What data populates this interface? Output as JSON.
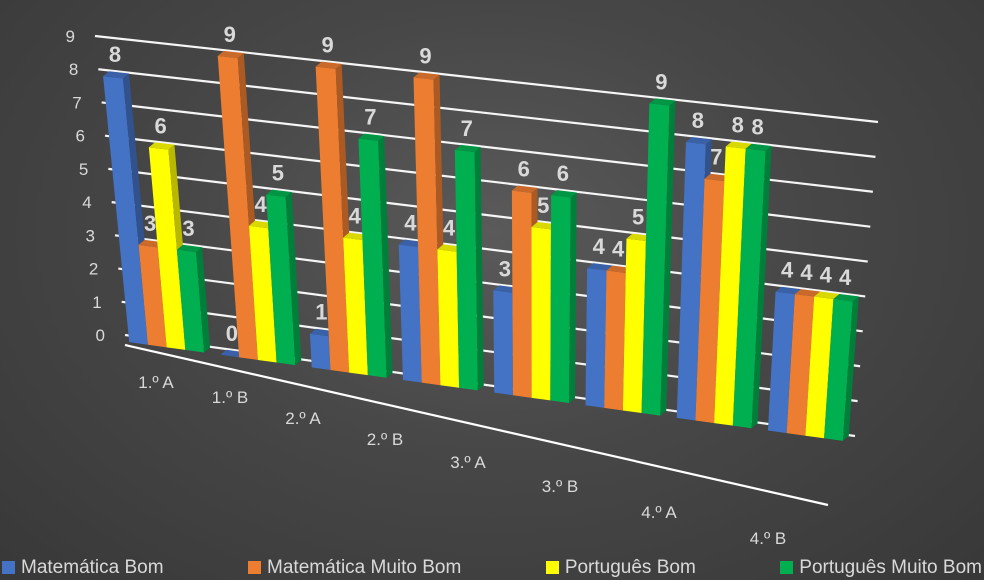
{
  "chart_data": {
    "type": "bar",
    "style": "3d-clustered-column",
    "title": "",
    "xlabel": "",
    "ylabel": "",
    "ylim": [
      0,
      9
    ],
    "yticks": [
      0,
      1,
      2,
      3,
      4,
      5,
      6,
      7,
      8,
      9
    ],
    "grid": true,
    "legend_position": "bottom",
    "categories": [
      "1.º A",
      "1.º B",
      "2.º A",
      "2.º B",
      "3.º A",
      "3.º B",
      "4.º A",
      "4.º B"
    ],
    "series": [
      {
        "name": "Matemática Bom",
        "color": "#4472c4",
        "values": [
          8,
          0,
          1,
          4,
          3,
          4,
          8,
          4
        ]
      },
      {
        "name": "Matemática Muito Bom",
        "color": "#ed7d31",
        "values": [
          3,
          9,
          9,
          9,
          6,
          4,
          7,
          4
        ]
      },
      {
        "name": "Português Bom",
        "color": "#ffff00",
        "values": [
          6,
          4,
          4,
          4,
          5,
          5,
          8,
          4
        ]
      },
      {
        "name": "Português Muito Bom",
        "color": "#00b050",
        "values": [
          3,
          5,
          7,
          7,
          6,
          9,
          8,
          4
        ]
      }
    ]
  }
}
